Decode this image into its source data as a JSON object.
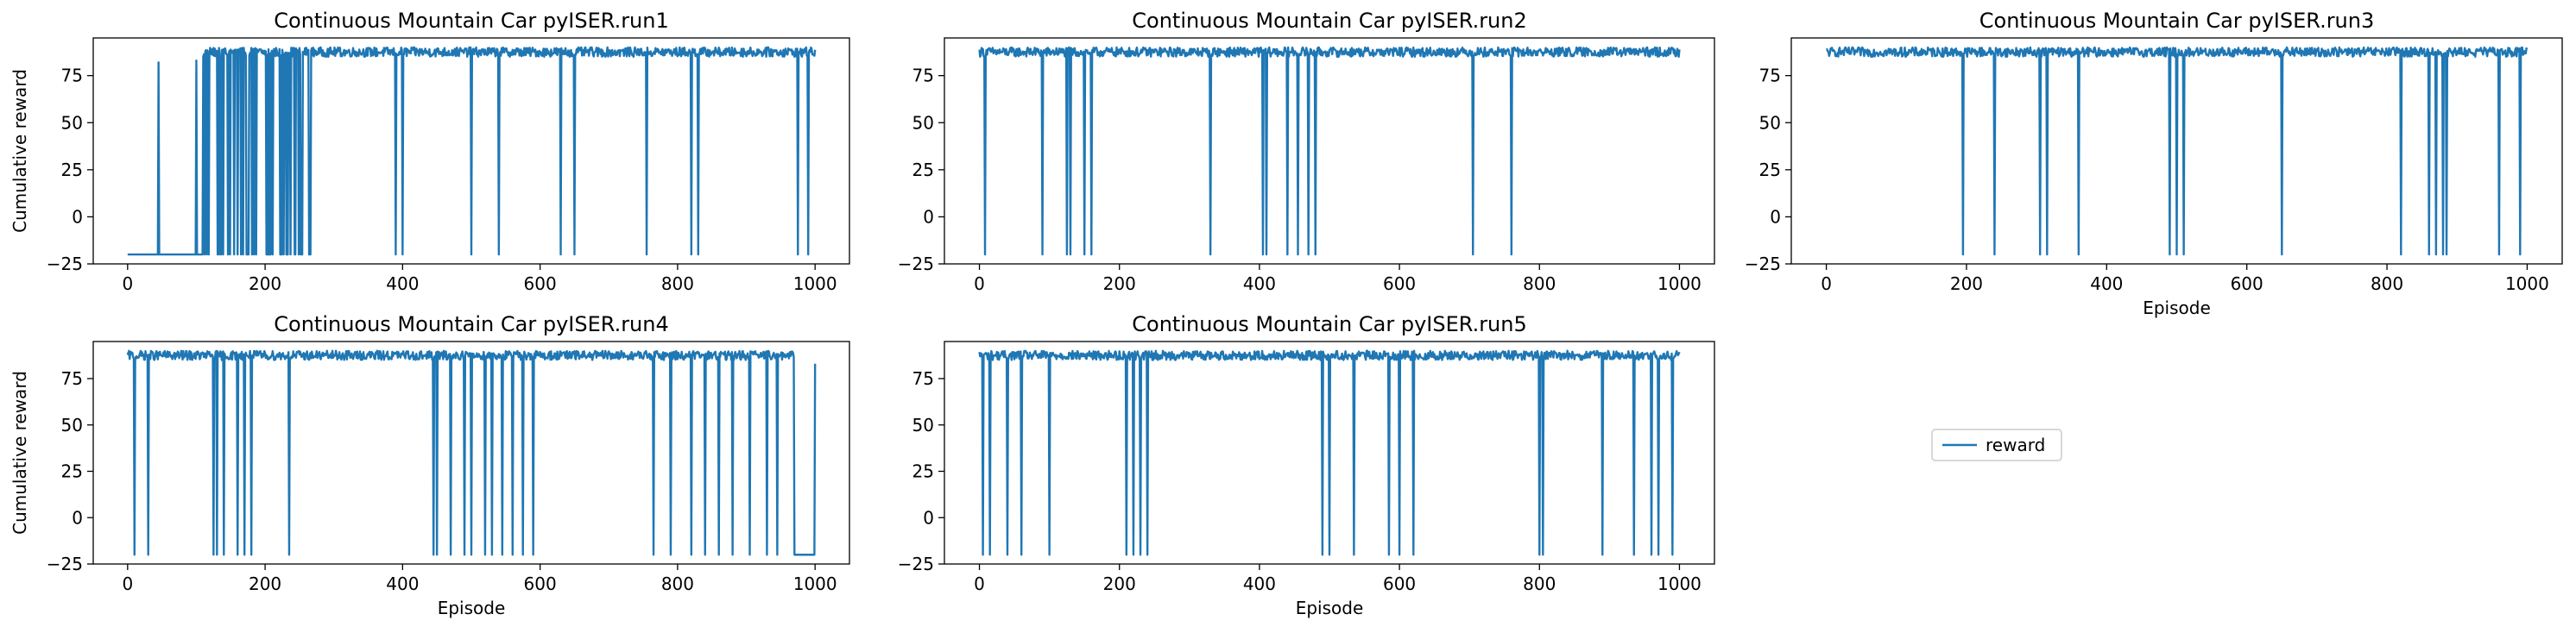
{
  "chart_data": [
    {
      "type": "line",
      "title": "Continuous Mountain Car pyISER.run1",
      "xlabel": "",
      "ylabel": "Cumulative reward",
      "xlim": [
        0,
        1000
      ],
      "ylim": [
        -25,
        95
      ],
      "x_ticks": [
        "0",
        "200",
        "400",
        "600",
        "800",
        "1000"
      ],
      "y_ticks": [
        "−25",
        "0",
        "25",
        "50",
        "75"
      ],
      "episodes": 1000,
      "base_reward": 88,
      "early": {
        "until": 110,
        "value": -20,
        "spikes": [
          [
            45,
            82
          ],
          [
            100,
            83
          ],
          [
            110,
            85
          ]
        ]
      },
      "transition": {
        "from": 110,
        "to": 270
      },
      "dips": [
        [
          390,
          -20
        ],
        [
          400,
          -20
        ],
        [
          500,
          -20
        ],
        [
          540,
          -20
        ],
        [
          630,
          -20
        ],
        [
          650,
          -20
        ],
        [
          755,
          -20
        ],
        [
          820,
          -20
        ],
        [
          830,
          -20
        ],
        [
          975,
          -20
        ],
        [
          990,
          -20
        ]
      ],
      "series": [
        {
          "name": "reward",
          "color": "#1f77b4"
        }
      ]
    },
    {
      "type": "line",
      "title": "Continuous Mountain Car pyISER.run2",
      "xlabel": "",
      "ylabel": "",
      "xlim": [
        0,
        1000
      ],
      "ylim": [
        -25,
        95
      ],
      "x_ticks": [
        "0",
        "200",
        "400",
        "600",
        "800",
        "1000"
      ],
      "y_ticks": [
        "−25",
        "0",
        "25",
        "50",
        "75"
      ],
      "episodes": 1000,
      "base_reward": 88,
      "dips": [
        [
          8,
          -20
        ],
        [
          90,
          -20
        ],
        [
          125,
          -20
        ],
        [
          130,
          -20
        ],
        [
          150,
          -20
        ],
        [
          160,
          -20
        ],
        [
          330,
          -20
        ],
        [
          405,
          -20
        ],
        [
          410,
          -20
        ],
        [
          440,
          -20
        ],
        [
          455,
          -20
        ],
        [
          470,
          -20
        ],
        [
          480,
          -20
        ],
        [
          705,
          -20
        ],
        [
          760,
          -20
        ]
      ],
      "series": [
        {
          "name": "reward",
          "color": "#1f77b4"
        }
      ]
    },
    {
      "type": "line",
      "title": "Continuous Mountain Car pyISER.run3",
      "xlabel": "Episode",
      "ylabel": "",
      "xlim": [
        0,
        1000
      ],
      "ylim": [
        -25,
        95
      ],
      "x_ticks": [
        "0",
        "200",
        "400",
        "600",
        "800",
        "1000"
      ],
      "y_ticks": [
        "−25",
        "0",
        "25",
        "50",
        "75"
      ],
      "episodes": 1000,
      "base_reward": 88,
      "dips": [
        [
          195,
          -20
        ],
        [
          240,
          -20
        ],
        [
          305,
          -20
        ],
        [
          315,
          -20
        ],
        [
          360,
          -20
        ],
        [
          490,
          -20
        ],
        [
          500,
          -20
        ],
        [
          510,
          -20
        ],
        [
          650,
          -20
        ],
        [
          820,
          -20
        ],
        [
          860,
          -20
        ],
        [
          870,
          -20
        ],
        [
          880,
          -20
        ],
        [
          885,
          -20
        ],
        [
          960,
          -20
        ],
        [
          990,
          -20
        ]
      ],
      "series": [
        {
          "name": "reward",
          "color": "#1f77b4"
        }
      ]
    },
    {
      "type": "line",
      "title": "Continuous Mountain Car pyISER.run4",
      "xlabel": "Episode",
      "ylabel": "Cumulative reward",
      "xlim": [
        0,
        1000
      ],
      "ylim": [
        -25,
        95
      ],
      "x_ticks": [
        "0",
        "200",
        "400",
        "600",
        "800",
        "1000"
      ],
      "y_ticks": [
        "−25",
        "0",
        "25",
        "50",
        "75"
      ],
      "episodes": 1000,
      "base_reward": 88,
      "tail": {
        "from": 970,
        "to": 1000,
        "value": -20,
        "spike": [
          1000,
          83
        ]
      },
      "dips": [
        [
          10,
          -20
        ],
        [
          30,
          -20
        ],
        [
          125,
          -20
        ],
        [
          130,
          -20
        ],
        [
          140,
          -20
        ],
        [
          160,
          -20
        ],
        [
          170,
          -20
        ],
        [
          180,
          -20
        ],
        [
          235,
          -20
        ],
        [
          445,
          -20
        ],
        [
          450,
          -20
        ],
        [
          470,
          -20
        ],
        [
          490,
          -20
        ],
        [
          500,
          -20
        ],
        [
          520,
          -20
        ],
        [
          530,
          -20
        ],
        [
          545,
          -20
        ],
        [
          560,
          -20
        ],
        [
          575,
          -20
        ],
        [
          590,
          -20
        ],
        [
          765,
          -20
        ],
        [
          790,
          -20
        ],
        [
          820,
          -20
        ],
        [
          840,
          -20
        ],
        [
          860,
          -20
        ],
        [
          880,
          -20
        ],
        [
          905,
          -20
        ],
        [
          930,
          -20
        ],
        [
          945,
          -20
        ]
      ],
      "series": [
        {
          "name": "reward",
          "color": "#1f77b4"
        }
      ]
    },
    {
      "type": "line",
      "title": "Continuous Mountain Car pyISER.run5",
      "xlabel": "Episode",
      "ylabel": "",
      "xlim": [
        0,
        1000
      ],
      "ylim": [
        -25,
        95
      ],
      "x_ticks": [
        "0",
        "200",
        "400",
        "600",
        "800",
        "1000"
      ],
      "y_ticks": [
        "−25",
        "0",
        "25",
        "50",
        "75"
      ],
      "episodes": 1000,
      "base_reward": 88,
      "dips": [
        [
          5,
          -20
        ],
        [
          15,
          -20
        ],
        [
          40,
          -20
        ],
        [
          60,
          -20
        ],
        [
          100,
          -20
        ],
        [
          210,
          -20
        ],
        [
          220,
          -20
        ],
        [
          230,
          -20
        ],
        [
          240,
          -20
        ],
        [
          490,
          -20
        ],
        [
          500,
          -20
        ],
        [
          535,
          -20
        ],
        [
          585,
          -20
        ],
        [
          600,
          -20
        ],
        [
          620,
          -20
        ],
        [
          800,
          -20
        ],
        [
          805,
          -20
        ],
        [
          890,
          -20
        ],
        [
          935,
          -20
        ],
        [
          960,
          -20
        ],
        [
          970,
          -20
        ],
        [
          990,
          -20
        ]
      ],
      "series": [
        {
          "name": "reward",
          "color": "#1f77b4"
        }
      ]
    }
  ],
  "legend": {
    "label": "reward",
    "color": "#1f77b4"
  }
}
